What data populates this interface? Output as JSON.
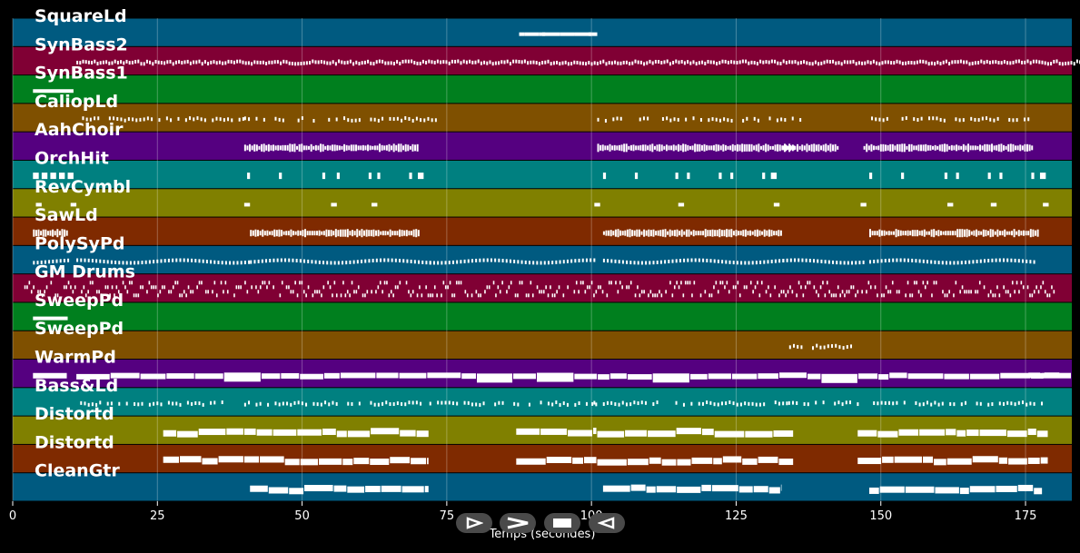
{
  "chart_data": {
    "type": "piano-roll",
    "xlabel": "Temps (secondes)",
    "xlim": [
      0,
      183
    ],
    "x_ticks": [
      0,
      25,
      50,
      75,
      100,
      125,
      150,
      175
    ],
    "grid": true,
    "tracks": [
      {
        "name": "SquareLd",
        "color": "#005a80",
        "notes": [
          [
            87.5,
            1
          ],
          [
            88.5,
            2.5
          ],
          [
            91,
            1
          ],
          [
            91.5,
            3
          ],
          [
            94.5,
            1
          ],
          [
            95.5,
            1.5
          ],
          [
            97,
            3
          ],
          [
            99.5,
            0.5
          ],
          [
            100,
            1
          ]
        ]
      },
      {
        "name": "SynBass2",
        "color": "#800034",
        "pattern": "dense",
        "notes": [
          [
            11,
            180
          ]
        ]
      },
      {
        "name": "SynBass1",
        "color": "#007f1e",
        "notes": [
          [
            3.5,
            7
          ]
        ]
      },
      {
        "name": "CaliopLd",
        "color": "#7f5000",
        "pattern": "sparse",
        "notes": [
          [
            12,
            28
          ],
          [
            40,
            33
          ],
          [
            101,
            35
          ],
          [
            147,
            29
          ]
        ]
      },
      {
        "name": "AahChoir",
        "color": "#550080",
        "pattern": "blocks",
        "notes": [
          [
            40,
            30
          ],
          [
            101,
            34
          ],
          [
            133,
            9.5
          ],
          [
            147,
            29
          ]
        ]
      },
      {
        "name": "OrchHit",
        "color": "#008080",
        "pattern": "hits",
        "notes": [
          [
            3.5,
            1
          ],
          [
            5,
            1
          ],
          [
            6.5,
            1
          ],
          [
            8,
            1
          ],
          [
            9.5,
            1
          ],
          [
            40.5,
            0.5
          ],
          [
            46,
            0.5
          ],
          [
            53.5,
            0.5
          ],
          [
            56,
            0.5
          ],
          [
            61.5,
            0.5
          ],
          [
            63,
            0.5
          ],
          [
            68.5,
            0.5
          ],
          [
            70,
            1
          ],
          [
            102,
            0.5
          ],
          [
            107.5,
            0.5
          ],
          [
            114.5,
            0.5
          ],
          [
            116.5,
            0.5
          ],
          [
            122,
            0.5
          ],
          [
            124,
            0.5
          ],
          [
            129.5,
            0.5
          ],
          [
            131,
            1
          ],
          [
            148,
            0.5
          ],
          [
            153.5,
            0.5
          ],
          [
            161,
            0.5
          ],
          [
            163,
            0.5
          ],
          [
            168.5,
            0.5
          ],
          [
            170.5,
            0.5
          ],
          [
            176,
            0.5
          ],
          [
            177.5,
            1
          ]
        ]
      },
      {
        "name": "RevCymbl",
        "color": "#808000",
        "notes": [
          [
            4,
            1
          ],
          [
            10,
            1
          ],
          [
            40,
            1
          ],
          [
            55,
            1
          ],
          [
            62,
            1
          ],
          [
            100.5,
            1
          ],
          [
            115,
            1
          ],
          [
            131.5,
            1
          ],
          [
            146.5,
            1
          ],
          [
            161.5,
            1
          ],
          [
            169,
            1
          ],
          [
            178,
            1
          ]
        ]
      },
      {
        "name": "SawLd",
        "color": "#7f2a00",
        "pattern": "blocks",
        "notes": [
          [
            3.5,
            6
          ],
          [
            41,
            29
          ],
          [
            102,
            31
          ],
          [
            148,
            29
          ]
        ]
      },
      {
        "name": "PolySyPd",
        "color": "#005a80",
        "pattern": "wave",
        "notes": [
          [
            3.5,
            6
          ],
          [
            11,
            30
          ],
          [
            41,
            31
          ],
          [
            72,
            29
          ],
          [
            102,
            31
          ],
          [
            133,
            14
          ],
          [
            148,
            29
          ]
        ]
      },
      {
        "name": "GM Drums",
        "color": "#800034",
        "pattern": "drums",
        "notes": [
          [
            2,
            178
          ]
        ]
      },
      {
        "name": "SweepPd",
        "color": "#007f1e",
        "notes": [
          [
            3.5,
            6
          ]
        ]
      },
      {
        "name": "SweepPd",
        "color": "#7f5000",
        "pattern": "sparse",
        "notes": [
          [
            133.5,
            13
          ]
        ]
      },
      {
        "name": "WarmPd",
        "color": "#550080",
        "pattern": "pad",
        "notes": [
          [
            3.5,
            6
          ],
          [
            11,
            170
          ],
          [
            175.5,
            7.5
          ]
        ]
      },
      {
        "name": "Bass&Ld",
        "color": "#008080",
        "pattern": "sparse",
        "notes": [
          [
            11,
            26
          ],
          [
            40,
            31
          ],
          [
            72,
            30
          ],
          [
            100,
            34
          ],
          [
            134,
            12
          ],
          [
            148,
            30
          ]
        ]
      },
      {
        "name": "Distortd",
        "color": "#808000",
        "pattern": "chunks",
        "notes": [
          [
            26,
            14
          ],
          [
            40,
            32
          ],
          [
            87,
            14
          ],
          [
            101,
            34
          ],
          [
            146,
            33
          ]
        ]
      },
      {
        "name": "Distortd",
        "color": "#7f2a00",
        "pattern": "chunks",
        "notes": [
          [
            26,
            14
          ],
          [
            40,
            32
          ],
          [
            87,
            14
          ],
          [
            101,
            34
          ],
          [
            146,
            33
          ]
        ]
      },
      {
        "name": "CleanGtr",
        "color": "#005a80",
        "pattern": "chunks",
        "notes": [
          [
            41,
            31
          ],
          [
            102,
            31
          ],
          [
            148,
            30
          ]
        ]
      }
    ]
  },
  "controls": {
    "play_icon": "play-icon",
    "fast_forward_icon": "fast-forward-icon",
    "stop_icon": "stop-icon",
    "rewind_icon": "rewind-icon"
  }
}
